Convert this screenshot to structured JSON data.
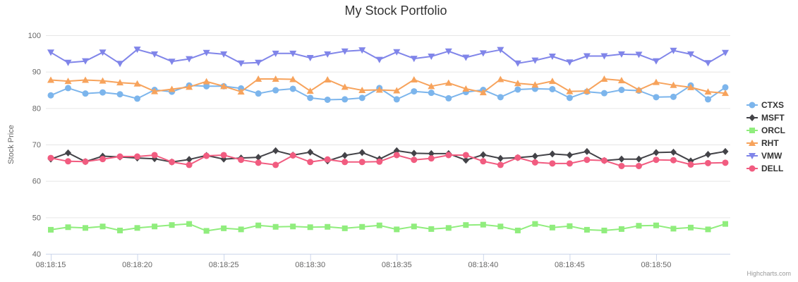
{
  "chart_data": {
    "type": "line",
    "title": "My Stock Portfolio",
    "xlabel": "",
    "ylabel": "Stock Price",
    "ylim": [
      40,
      100
    ],
    "yticks": [
      "40",
      "50",
      "60",
      "70",
      "80",
      "90",
      "100"
    ],
    "xticks": [
      "08:18:15",
      "08:18:20",
      "08:18:25",
      "08:18:30",
      "08:18:35",
      "08:18:40",
      "08:18:45",
      "08:18:50"
    ],
    "x_start": "08:18:15",
    "x_end": "08:18:54",
    "grid": "horizontal",
    "legend_position": "right",
    "credit": "Highcharts.com",
    "series": [
      {
        "name": "CTXS",
        "color": "#7cb5ec",
        "marker": "circle",
        "values": [
          83.5,
          85.5,
          84.0,
          84.3,
          83.8,
          82.6,
          85.0,
          84.5,
          86.2,
          86.0,
          86.0,
          85.4,
          84.0,
          84.9,
          85.3,
          82.8,
          82.3,
          82.4,
          82.8,
          85.5,
          82.4,
          84.6,
          84.2,
          82.7,
          84.4,
          85.0,
          83.0,
          85.1,
          85.3,
          85.2,
          82.8,
          84.5,
          84.1,
          85.0,
          84.8,
          83.0,
          83.1,
          86.2,
          82.4,
          85.7
        ]
      },
      {
        "name": "MSFT",
        "color": "#434348",
        "marker": "diamond",
        "values": [
          66.0,
          67.7,
          65.3,
          66.8,
          66.6,
          66.3,
          66.1,
          65.2,
          65.9,
          67.0,
          66.0,
          66.3,
          66.5,
          68.3,
          67.1,
          67.9,
          65.5,
          67.0,
          67.8,
          66.0,
          68.3,
          67.6,
          67.5,
          67.5,
          65.7,
          67.2,
          66.2,
          66.4,
          66.8,
          67.4,
          67.1,
          68.1,
          65.6,
          66.0,
          66.0,
          67.8,
          67.9,
          65.5,
          67.3,
          68.1
        ]
      },
      {
        "name": "ORCL",
        "color": "#90ed7d",
        "marker": "square",
        "values": [
          46.6,
          47.3,
          47.1,
          47.5,
          46.4,
          47.1,
          47.5,
          47.9,
          48.2,
          46.3,
          47.0,
          46.7,
          47.8,
          47.4,
          47.5,
          47.3,
          47.4,
          47.0,
          47.4,
          47.8,
          46.7,
          47.5,
          46.8,
          47.1,
          47.9,
          48.0,
          47.5,
          46.4,
          48.2,
          47.2,
          47.6,
          46.6,
          46.4,
          46.8,
          47.7,
          47.8,
          46.9,
          47.2,
          46.7,
          48.2
        ]
      },
      {
        "name": "RHT",
        "color": "#f7a35c",
        "marker": "triangle",
        "values": [
          87.7,
          87.4,
          87.7,
          87.5,
          87.0,
          86.7,
          84.6,
          85.2,
          85.8,
          87.3,
          86.0,
          84.5,
          88.0,
          88.0,
          87.9,
          84.7,
          87.8,
          85.8,
          84.9,
          85.0,
          84.8,
          87.8,
          86.0,
          86.9,
          85.3,
          84.3,
          87.9,
          86.8,
          86.4,
          87.4,
          84.6,
          84.7,
          88.0,
          87.6,
          85.0,
          87.1,
          86.3,
          85.7,
          84.5,
          84.1
        ]
      },
      {
        "name": "VMW",
        "color": "#8085e9",
        "marker": "triangle-down",
        "values": [
          95.3,
          92.5,
          92.9,
          95.3,
          92.2,
          96.1,
          94.8,
          92.8,
          93.5,
          95.2,
          94.8,
          92.3,
          92.5,
          95.0,
          95.0,
          93.8,
          94.8,
          95.6,
          95.9,
          93.3,
          95.4,
          93.6,
          94.2,
          95.6,
          93.9,
          95.1,
          96.0,
          92.3,
          93.1,
          94.2,
          92.6,
          94.3,
          94.3,
          94.8,
          94.7,
          92.9,
          95.8,
          94.8,
          92.4,
          95.2
        ]
      },
      {
        "name": "DELL",
        "color": "#f15c80",
        "marker": "circle",
        "values": [
          66.3,
          65.4,
          65.3,
          66.0,
          66.7,
          66.7,
          67.1,
          65.2,
          64.4,
          66.9,
          67.1,
          65.8,
          65.0,
          64.4,
          67.0,
          65.2,
          65.9,
          65.2,
          65.2,
          65.3,
          67.1,
          65.8,
          66.2,
          67.1,
          67.1,
          65.4,
          64.4,
          66.4,
          65.1,
          64.8,
          64.8,
          65.8,
          65.6,
          64.1,
          64.1,
          65.8,
          65.7,
          64.5,
          64.9,
          65.0
        ]
      }
    ]
  }
}
